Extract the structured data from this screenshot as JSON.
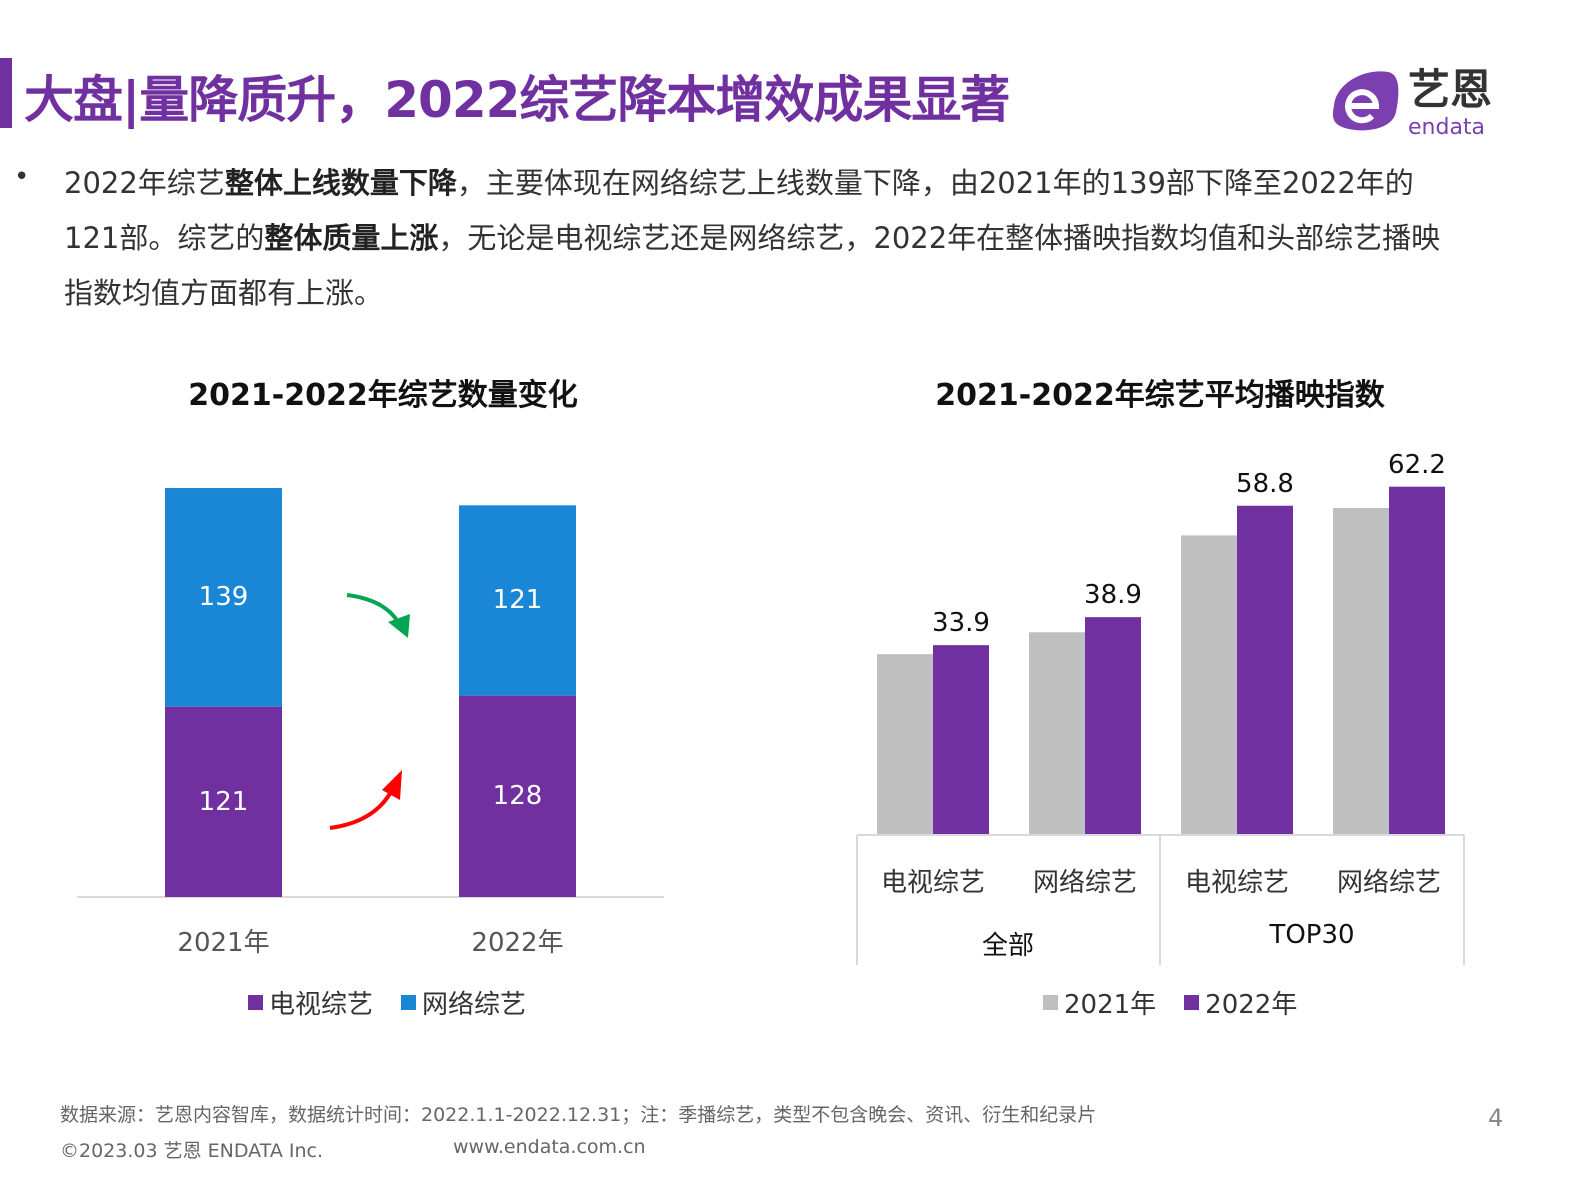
{
  "header": {
    "title": "大盘|量降质升，2022综艺降本增效成果显著",
    "logo_text": "艺恩",
    "logo_sub": "endata",
    "accent": "#7030a0"
  },
  "body": {
    "bullet": "•",
    "parts": [
      {
        "t": "2022年综艺",
        "b": false
      },
      {
        "t": "整体上线数量下降",
        "b": true
      },
      {
        "t": "，主要体现在网络综艺上线数量下降，由2021年的139部下降至2022年的121部。综艺的",
        "b": false
      },
      {
        "t": "整体质量上涨",
        "b": true
      },
      {
        "t": "，无论是电视综艺还是网络综艺，2022年在整体播映指数均值和头部综艺播映指数均值方面都有上涨。",
        "b": false
      }
    ]
  },
  "chart_data": [
    {
      "type": "bar",
      "stacked": true,
      "title": "2021-2022年综艺数量变化",
      "categories": [
        "2021年",
        "2022年"
      ],
      "series": [
        {
          "name": "电视综艺",
          "values": [
            121,
            128
          ],
          "color": "#7030a0"
        },
        {
          "name": "网络综艺",
          "values": [
            139,
            121
          ],
          "color": "#1a87d6"
        }
      ],
      "arrows": [
        {
          "direction": "down",
          "color": "#00a651"
        },
        {
          "direction": "up",
          "color": "#ff0000"
        }
      ],
      "legend": "bottom",
      "grid": false
    },
    {
      "type": "bar",
      "title": "2021-2022年综艺平均播映指数",
      "categories": [
        "电视综艺",
        "网络综艺",
        "电视综艺",
        "网络综艺"
      ],
      "groups": [
        {
          "label": "全部"
        },
        {
          "label": "TOP30"
        }
      ],
      "series": [
        {
          "name": "2021年",
          "values": [
            32.3,
            36.2,
            53.5,
            58.4
          ],
          "color": "#bfbfbf"
        },
        {
          "name": "2022年",
          "values": [
            33.9,
            38.9,
            58.8,
            62.2
          ],
          "color": "#7030a0",
          "labels": [
            "33.9",
            "38.9",
            "58.8",
            "62.2"
          ]
        }
      ],
      "legend": "bottom",
      "grid": false
    }
  ],
  "footer": {
    "source": "数据来源：艺恩内容智库，数据统计时间：2022.1.1-2022.12.31；注：季播综艺，类型不包含晚会、资讯、衍生和纪录片",
    "copyright": "©2023.03 艺恩 ENDATA Inc.",
    "url": "www.endata.com.cn",
    "page": "4"
  }
}
